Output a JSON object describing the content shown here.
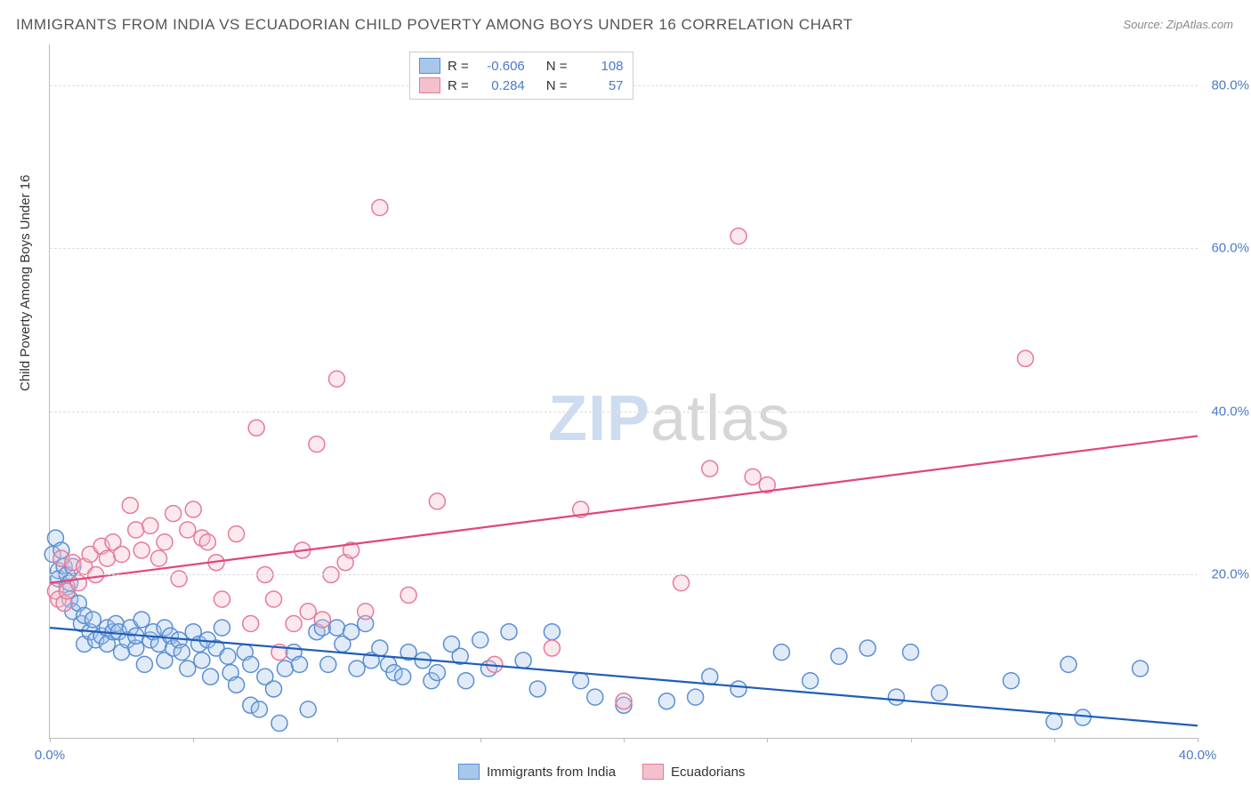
{
  "title": "IMMIGRANTS FROM INDIA VS ECUADORIAN CHILD POVERTY AMONG BOYS UNDER 16 CORRELATION CHART",
  "source_label": "Source:",
  "source_value": "ZipAtlas.com",
  "watermark_part1": "ZIP",
  "watermark_part2": "atlas",
  "y_axis_title": "Child Poverty Among Boys Under 16",
  "chart": {
    "type": "scatter",
    "background_color": "#ffffff",
    "grid_color": "#dddddd",
    "axis_color": "#bbbbbb",
    "tick_label_color": "#4a7bc8",
    "axis_title_color": "#333333",
    "title_color": "#555555",
    "title_fontsize": 17,
    "tick_fontsize": 15,
    "xlim": [
      0,
      40
    ],
    "ylim": [
      0,
      85
    ],
    "x_ticks": [
      0,
      5,
      10,
      15,
      20,
      25,
      30,
      35,
      40
    ],
    "x_tick_labels": [
      "0.0%",
      "",
      "",
      "",
      "",
      "",
      "",
      "",
      "40.0%"
    ],
    "y_ticks": [
      20,
      40,
      60,
      80
    ],
    "y_tick_labels": [
      "20.0%",
      "40.0%",
      "60.0%",
      "80.0%"
    ],
    "marker_radius": 9,
    "marker_stroke_width": 1.5,
    "marker_fill_opacity": 0.35,
    "trend_line_width": 2.2,
    "series": [
      {
        "name": "Immigrants from India",
        "color_fill": "#a9c7ea",
        "color_stroke": "#5a8fd4",
        "trend_color": "#1f5db8",
        "R": "-0.606",
        "N": "108",
        "trend": {
          "x1": 0,
          "y1": 13.5,
          "x2": 40,
          "y2": 1.5
        },
        "points": [
          [
            0.1,
            22.5
          ],
          [
            0.2,
            24.5
          ],
          [
            0.3,
            20.5
          ],
          [
            0.3,
            19.5
          ],
          [
            0.4,
            23.0
          ],
          [
            0.5,
            21.0
          ],
          [
            0.6,
            18.5
          ],
          [
            0.6,
            20.0
          ],
          [
            0.7,
            19.0
          ],
          [
            0.7,
            17.0
          ],
          [
            0.8,
            15.5
          ],
          [
            0.8,
            21.0
          ],
          [
            1.0,
            16.5
          ],
          [
            1.1,
            14.0
          ],
          [
            1.2,
            15.0
          ],
          [
            1.2,
            11.5
          ],
          [
            1.4,
            13.0
          ],
          [
            1.5,
            14.5
          ],
          [
            1.6,
            12.0
          ],
          [
            1.8,
            12.5
          ],
          [
            2.0,
            11.5
          ],
          [
            2.0,
            13.5
          ],
          [
            2.2,
            13.0
          ],
          [
            2.3,
            14.0
          ],
          [
            2.4,
            13.0
          ],
          [
            2.5,
            10.5
          ],
          [
            2.7,
            12.0
          ],
          [
            2.8,
            13.5
          ],
          [
            3.0,
            11.0
          ],
          [
            3.0,
            12.5
          ],
          [
            3.2,
            14.5
          ],
          [
            3.3,
            9.0
          ],
          [
            3.5,
            12.0
          ],
          [
            3.6,
            13.0
          ],
          [
            3.8,
            11.5
          ],
          [
            4.0,
            13.5
          ],
          [
            4.0,
            9.5
          ],
          [
            4.2,
            12.5
          ],
          [
            4.3,
            11.0
          ],
          [
            4.5,
            12.0
          ],
          [
            4.6,
            10.5
          ],
          [
            4.8,
            8.5
          ],
          [
            5.0,
            13.0
          ],
          [
            5.2,
            11.5
          ],
          [
            5.3,
            9.5
          ],
          [
            5.5,
            12.0
          ],
          [
            5.6,
            7.5
          ],
          [
            5.8,
            11.0
          ],
          [
            6.0,
            13.5
          ],
          [
            6.2,
            10.0
          ],
          [
            6.3,
            8.0
          ],
          [
            6.5,
            6.5
          ],
          [
            6.8,
            10.5
          ],
          [
            7.0,
            4.0
          ],
          [
            7.0,
            9.0
          ],
          [
            7.3,
            3.5
          ],
          [
            7.5,
            7.5
          ],
          [
            7.8,
            6.0
          ],
          [
            8.0,
            1.8
          ],
          [
            8.2,
            8.5
          ],
          [
            8.5,
            10.5
          ],
          [
            8.7,
            9.0
          ],
          [
            9.0,
            3.5
          ],
          [
            9.3,
            13.0
          ],
          [
            9.5,
            13.5
          ],
          [
            9.7,
            9.0
          ],
          [
            10.0,
            13.5
          ],
          [
            10.2,
            11.5
          ],
          [
            10.5,
            13.0
          ],
          [
            10.7,
            8.5
          ],
          [
            11.0,
            14.0
          ],
          [
            11.2,
            9.5
          ],
          [
            11.5,
            11.0
          ],
          [
            11.8,
            9.0
          ],
          [
            12.0,
            8.0
          ],
          [
            12.3,
            7.5
          ],
          [
            12.5,
            10.5
          ],
          [
            13.0,
            9.5
          ],
          [
            13.3,
            7.0
          ],
          [
            13.5,
            8.0
          ],
          [
            14.0,
            11.5
          ],
          [
            14.3,
            10.0
          ],
          [
            14.5,
            7.0
          ],
          [
            15.0,
            12.0
          ],
          [
            15.3,
            8.5
          ],
          [
            16.0,
            13.0
          ],
          [
            16.5,
            9.5
          ],
          [
            17.0,
            6.0
          ],
          [
            17.5,
            13.0
          ],
          [
            18.5,
            7.0
          ],
          [
            19.0,
            5.0
          ],
          [
            20.0,
            4.0
          ],
          [
            21.5,
            4.5
          ],
          [
            22.5,
            5.0
          ],
          [
            23.0,
            7.5
          ],
          [
            24.0,
            6.0
          ],
          [
            25.5,
            10.5
          ],
          [
            26.5,
            7.0
          ],
          [
            27.5,
            10.0
          ],
          [
            28.5,
            11.0
          ],
          [
            29.5,
            5.0
          ],
          [
            30.0,
            10.5
          ],
          [
            31.0,
            5.5
          ],
          [
            33.5,
            7.0
          ],
          [
            35.0,
            2.0
          ],
          [
            35.5,
            9.0
          ],
          [
            36.0,
            2.5
          ],
          [
            38.0,
            8.5
          ]
        ]
      },
      {
        "name": "Ecuadorians",
        "color_fill": "#f4c0cc",
        "color_stroke": "#e77a9a",
        "trend_color": "#e0457c",
        "R": "0.284",
        "N": "57",
        "trend": {
          "x1": 0,
          "y1": 19.0,
          "x2": 40,
          "y2": 37.0
        },
        "points": [
          [
            0.2,
            18.0
          ],
          [
            0.3,
            17.0
          ],
          [
            0.4,
            22.0
          ],
          [
            0.5,
            16.5
          ],
          [
            0.6,
            18.0
          ],
          [
            0.8,
            21.5
          ],
          [
            1.0,
            19.0
          ],
          [
            1.2,
            21.0
          ],
          [
            1.4,
            22.5
          ],
          [
            1.6,
            20.0
          ],
          [
            1.8,
            23.5
          ],
          [
            2.0,
            22.0
          ],
          [
            2.2,
            24.0
          ],
          [
            2.5,
            22.5
          ],
          [
            2.8,
            28.5
          ],
          [
            3.0,
            25.5
          ],
          [
            3.2,
            23.0
          ],
          [
            3.5,
            26.0
          ],
          [
            3.8,
            22.0
          ],
          [
            4.0,
            24.0
          ],
          [
            4.3,
            27.5
          ],
          [
            4.5,
            19.5
          ],
          [
            4.8,
            25.5
          ],
          [
            5.0,
            28.0
          ],
          [
            5.3,
            24.5
          ],
          [
            5.5,
            24.0
          ],
          [
            5.8,
            21.5
          ],
          [
            6.0,
            17.0
          ],
          [
            6.5,
            25.0
          ],
          [
            7.0,
            14.0
          ],
          [
            7.2,
            38.0
          ],
          [
            7.5,
            20.0
          ],
          [
            7.8,
            17.0
          ],
          [
            8.0,
            10.5
          ],
          [
            8.5,
            14.0
          ],
          [
            8.8,
            23.0
          ],
          [
            9.0,
            15.5
          ],
          [
            9.3,
            36.0
          ],
          [
            9.5,
            14.5
          ],
          [
            9.8,
            20.0
          ],
          [
            10.0,
            44.0
          ],
          [
            10.3,
            21.5
          ],
          [
            10.5,
            23.0
          ],
          [
            11.0,
            15.5
          ],
          [
            11.5,
            65.0
          ],
          [
            12.5,
            17.5
          ],
          [
            13.5,
            29.0
          ],
          [
            15.5,
            9.0
          ],
          [
            17.5,
            11.0
          ],
          [
            18.5,
            28.0
          ],
          [
            20.0,
            4.5
          ],
          [
            22.0,
            19.0
          ],
          [
            23.0,
            33.0
          ],
          [
            24.0,
            61.5
          ],
          [
            24.5,
            32.0
          ],
          [
            25.0,
            31.0
          ],
          [
            34.0,
            46.5
          ]
        ]
      }
    ]
  },
  "legend_top": {
    "R_label": "R =",
    "N_label": "N ="
  },
  "legend_bottom": {
    "label1": "Immigrants from India",
    "label2": "Ecuadorians"
  }
}
